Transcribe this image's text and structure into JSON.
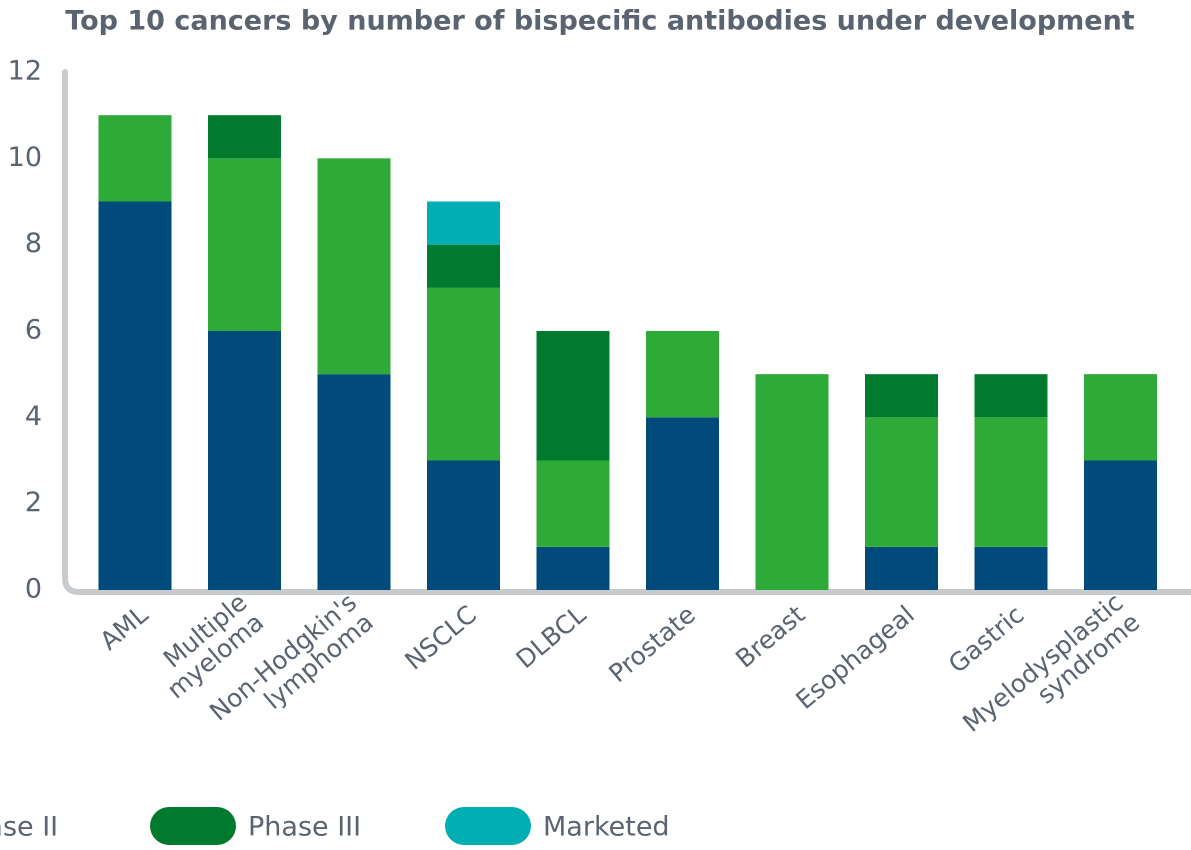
{
  "chart_data": {
    "type": "stacked_bar",
    "title": "Top 10 cancers by number of bispecific antibodies under development",
    "categories": [
      [
        "AML"
      ],
      [
        "Multiple",
        "myeloma"
      ],
      [
        "Non-Hodgkin's",
        "lymphoma"
      ],
      [
        "NSCLC"
      ],
      [
        "DLBCL"
      ],
      [
        "Prostate"
      ],
      [
        "Breast"
      ],
      [
        "Esophageal"
      ],
      [
        "Gastric"
      ],
      [
        "Myelodysplastic",
        "syndrome"
      ]
    ],
    "series": [
      {
        "color": "#004a7c",
        "values": [
          9,
          6,
          5,
          3,
          1,
          4,
          0,
          1,
          1,
          3
        ]
      },
      {
        "name": "Phase II",
        "color": "#2eaa38",
        "values": [
          2,
          4,
          5,
          4,
          2,
          2,
          5,
          3,
          3,
          2
        ]
      },
      {
        "name": "Phase III",
        "color": "#007a2e",
        "values": [
          0,
          1,
          0,
          1,
          3,
          0,
          0,
          1,
          1,
          0
        ]
      },
      {
        "name": "Marketed",
        "color": "#00aeb3",
        "values": [
          0,
          0,
          0,
          1,
          0,
          0,
          0,
          0,
          0,
          0
        ]
      }
    ],
    "ylim": [
      0,
      12
    ],
    "yticks": [
      0,
      2,
      4,
      6,
      8,
      10,
      12
    ]
  }
}
